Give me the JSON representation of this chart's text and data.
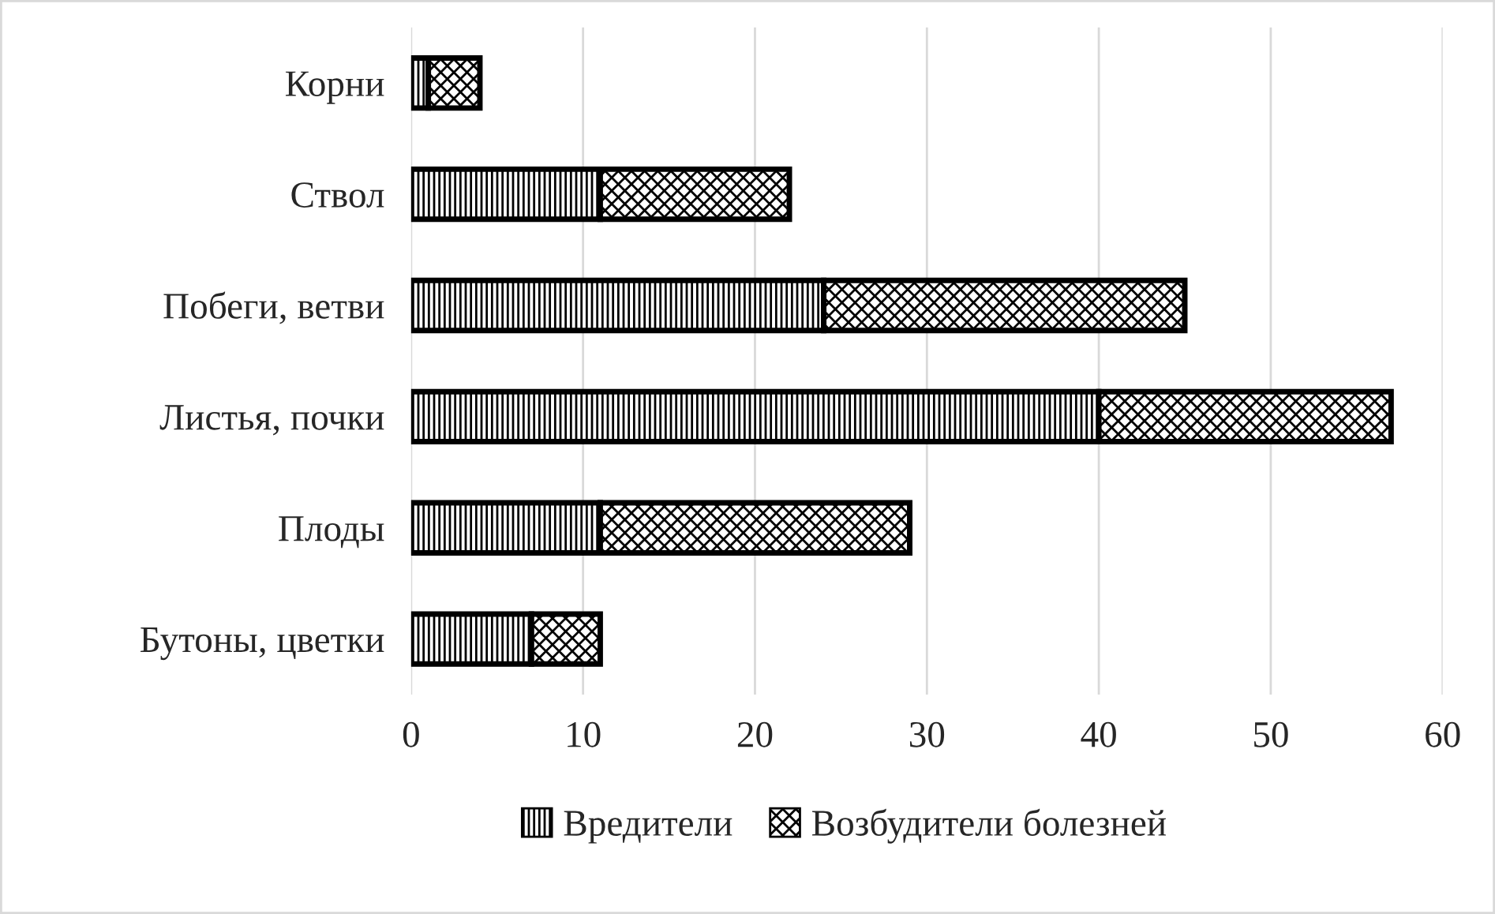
{
  "chart_data": {
    "type": "bar",
    "orientation": "horizontal",
    "stacked": true,
    "categories": [
      "Корни",
      "Ствол",
      "Побеги, ветви",
      "Листья, почки",
      "Плоды",
      "Бутоны, цветки"
    ],
    "series": [
      {
        "name": "Вредители",
        "color": "#000000",
        "values": [
          1,
          11,
          24,
          40,
          11,
          7
        ]
      },
      {
        "name": "Возбудители болезней",
        "color": "#000000",
        "values": [
          3,
          11,
          21,
          17,
          18,
          4
        ]
      }
    ],
    "xlim": [
      0,
      60
    ],
    "xticks": [
      0,
      10,
      20,
      30,
      40,
      50,
      60
    ],
    "grid": "x",
    "legend": "bottom"
  }
}
